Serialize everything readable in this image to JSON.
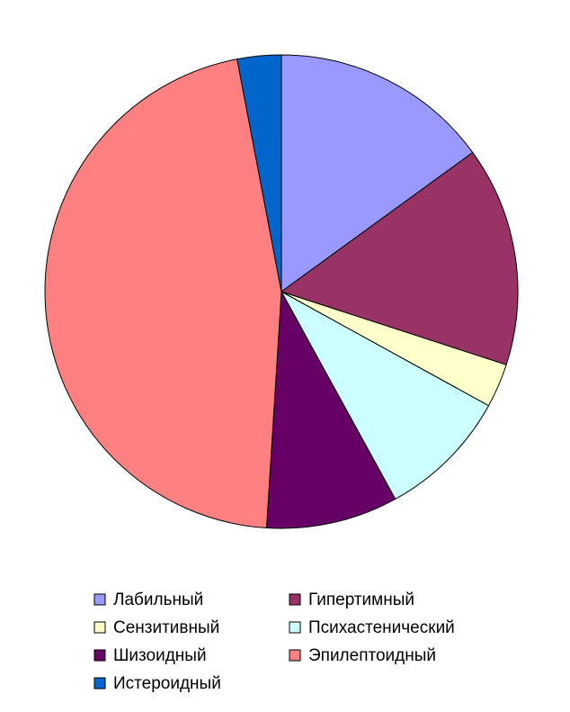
{
  "chart_data": {
    "type": "pie",
    "categories": [
      "Лабильный",
      "Гипертимный",
      "Сензитивный",
      "Психастенический",
      "Шизоидный",
      "Эпилептоидный",
      "Истероидный"
    ],
    "values": [
      15,
      15,
      3,
      9,
      9,
      46,
      3
    ],
    "colors": [
      "#9999ff",
      "#993366",
      "#ffffcc",
      "#ccffff",
      "#660066",
      "#ff8080",
      "#0066cc"
    ],
    "legend": "bottom"
  }
}
